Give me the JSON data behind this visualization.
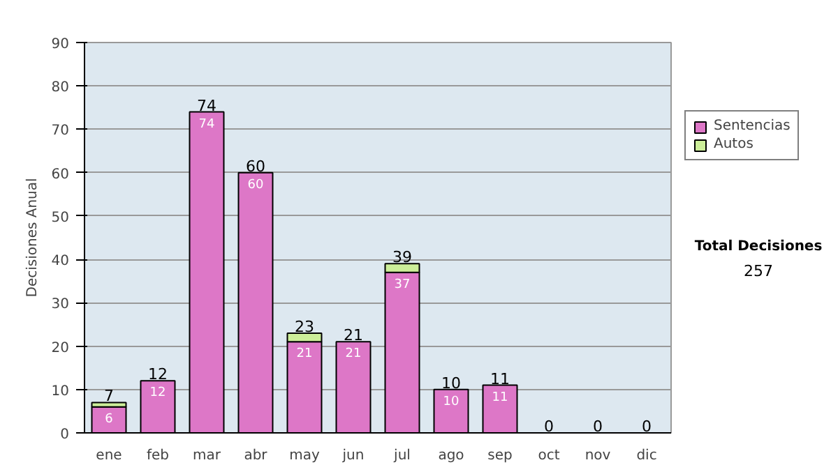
{
  "chart_data": {
    "type": "bar",
    "stacked": true,
    "ylabel": "Decisiones Anual",
    "categories": [
      "ene",
      "feb",
      "mar",
      "abr",
      "may",
      "jun",
      "jul",
      "ago",
      "sep",
      "oct",
      "nov",
      "dic"
    ],
    "series": [
      {
        "name": "Sentencias",
        "color": "#dd77c7",
        "values": [
          6,
          12,
          74,
          60,
          21,
          21,
          37,
          10,
          11,
          0,
          0,
          0
        ],
        "value_labels": [
          "6",
          "12",
          "74",
          "60",
          "21",
          "21",
          "37",
          "10",
          "11",
          null,
          null,
          null
        ]
      },
      {
        "name": "Autos",
        "color": "#ccee99",
        "values": [
          1,
          0,
          0,
          0,
          2,
          0,
          2,
          0,
          0,
          0,
          0,
          0
        ]
      }
    ],
    "totals": [
      "7",
      "12",
      "74",
      "60",
      "23",
      "21",
      "39",
      "10",
      "11",
      "0",
      "0",
      "0"
    ],
    "ylim": [
      0,
      90
    ],
    "yticks": [
      0,
      10,
      20,
      30,
      40,
      50,
      60,
      70,
      80,
      90
    ],
    "grid": "y",
    "legend": "right",
    "annotations": [
      "Total Decisiones",
      "257"
    ]
  }
}
